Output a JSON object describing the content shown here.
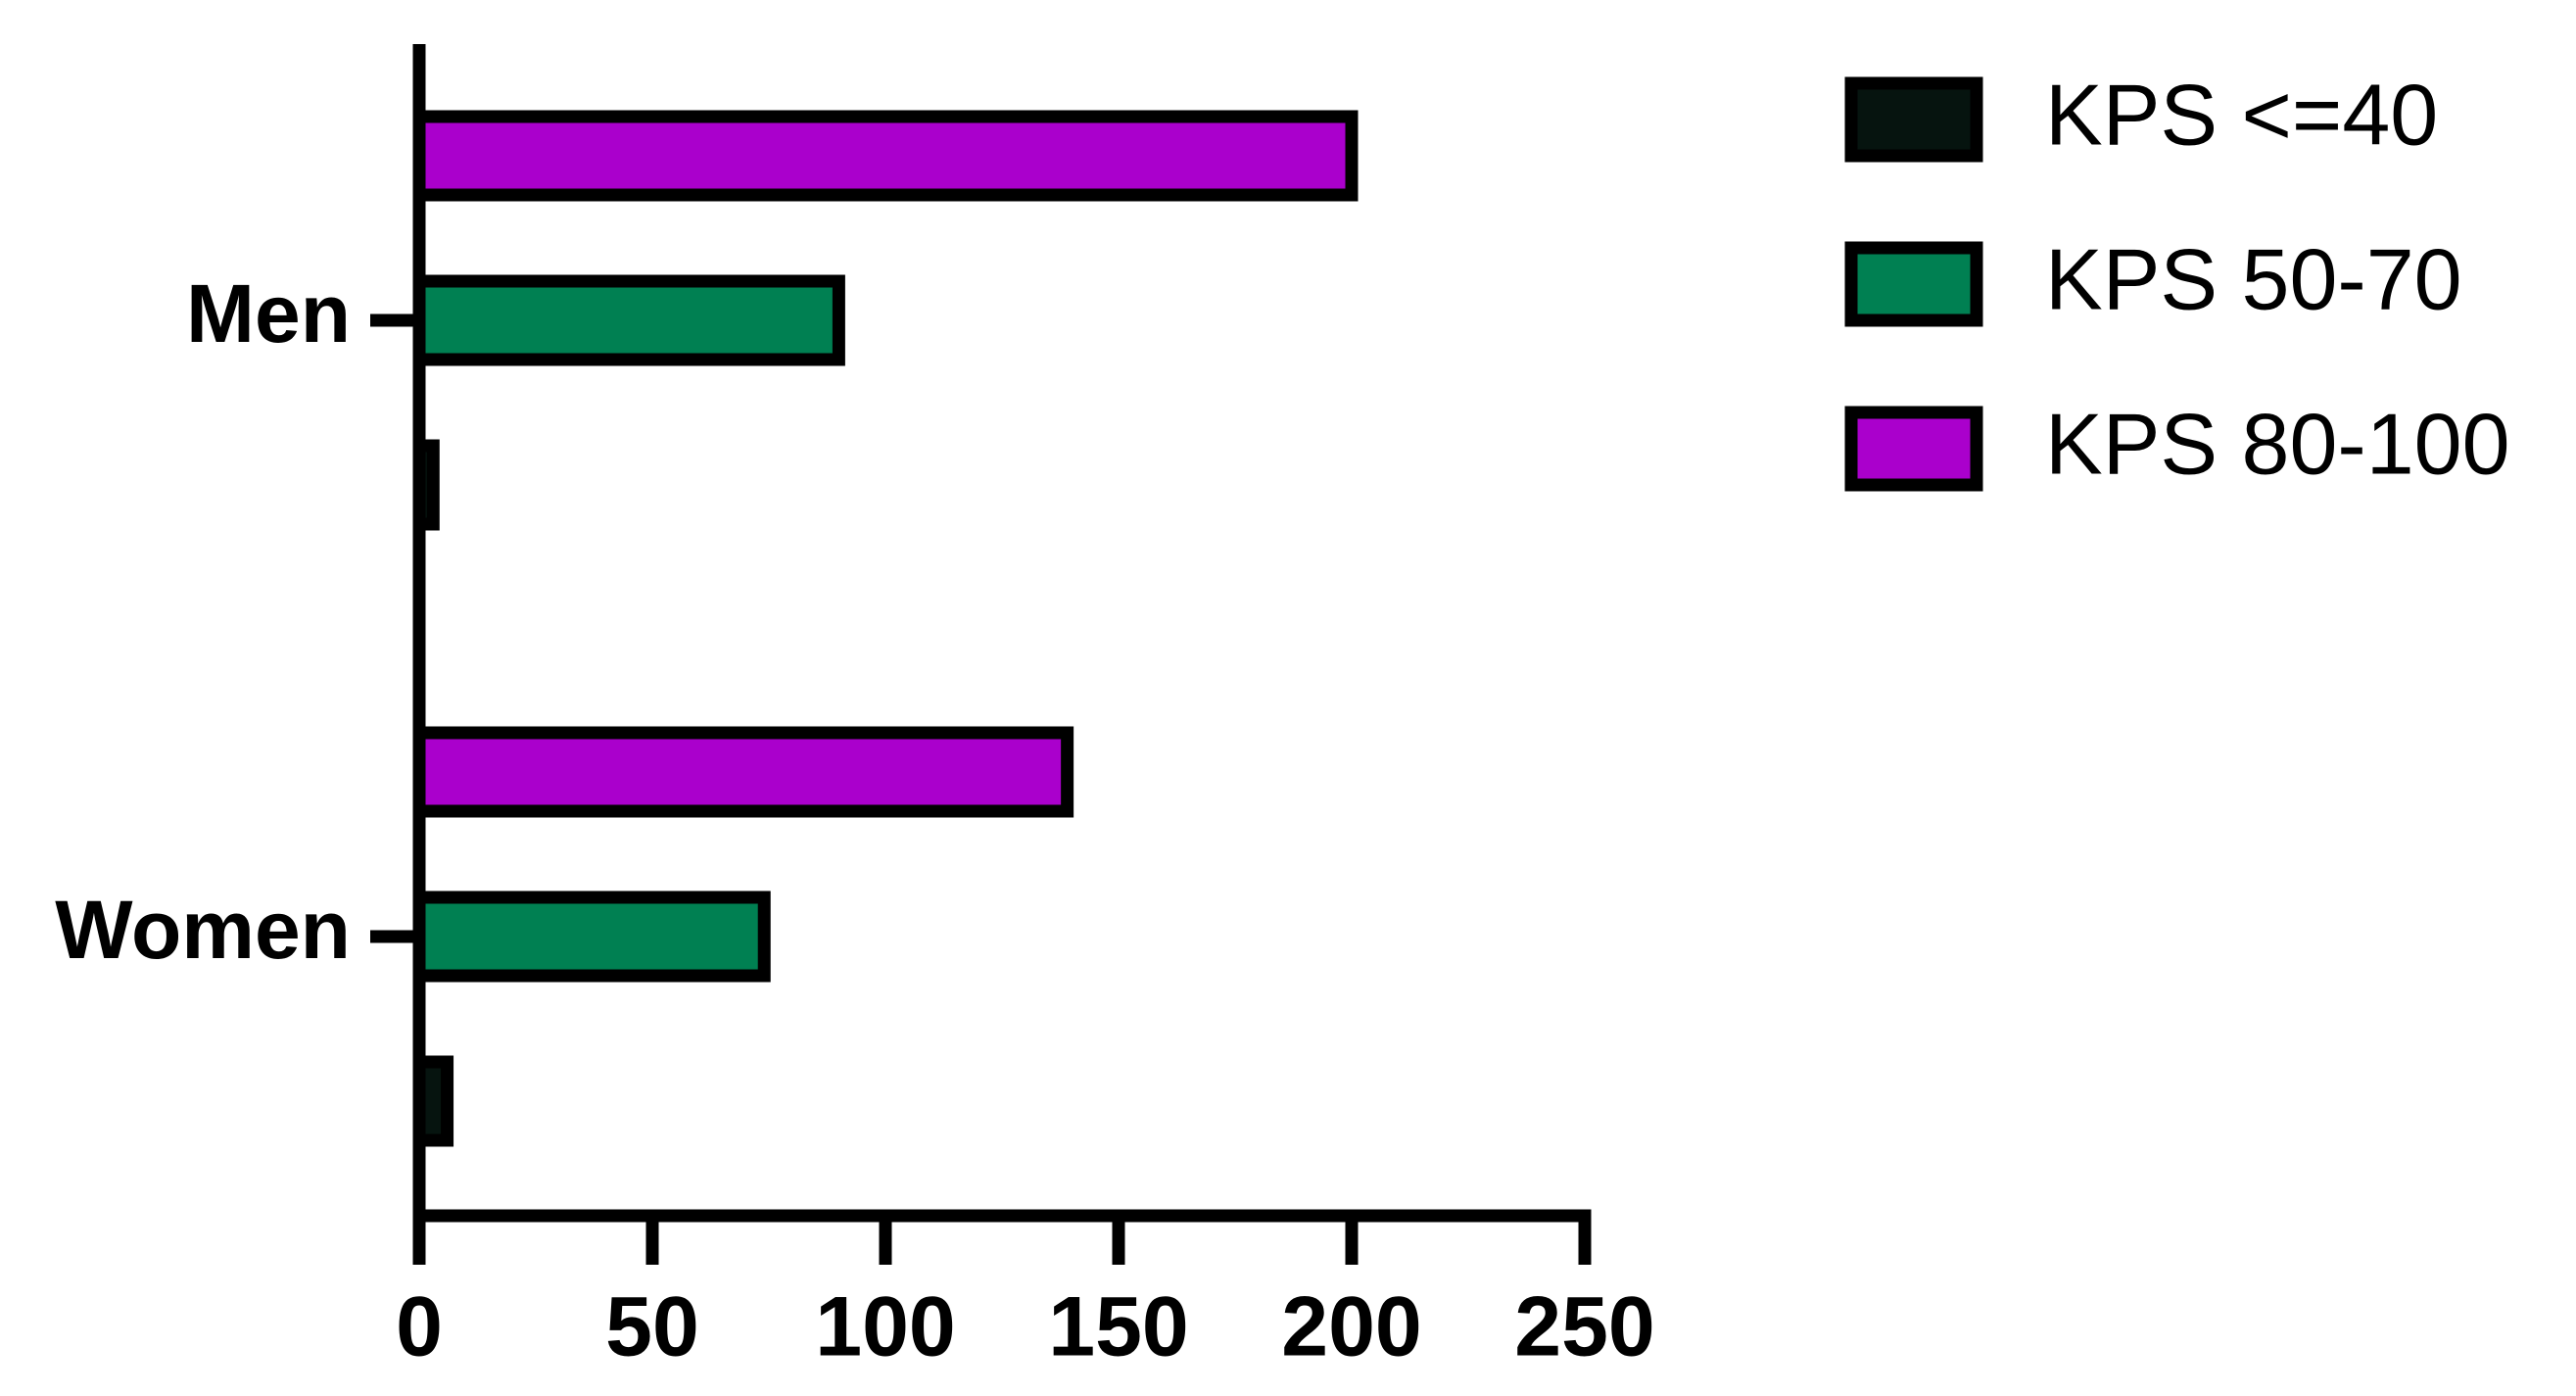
{
  "chart_data": {
    "type": "bar",
    "orientation": "horizontal",
    "categories": [
      "Men",
      "Women"
    ],
    "series": [
      {
        "name": "KPS <=40",
        "color": "#06140f",
        "values": [
          3,
          6
        ]
      },
      {
        "name": "KPS 50-70",
        "color": "#008052",
        "values": [
          90,
          74
        ]
      },
      {
        "name": "KPS 80-100",
        "color": "#aa00cc",
        "values": [
          200,
          139
        ]
      }
    ],
    "xlim": [
      0,
      250
    ],
    "xticks": [
      0,
      50,
      100,
      150,
      200,
      250
    ],
    "legend": "right"
  }
}
